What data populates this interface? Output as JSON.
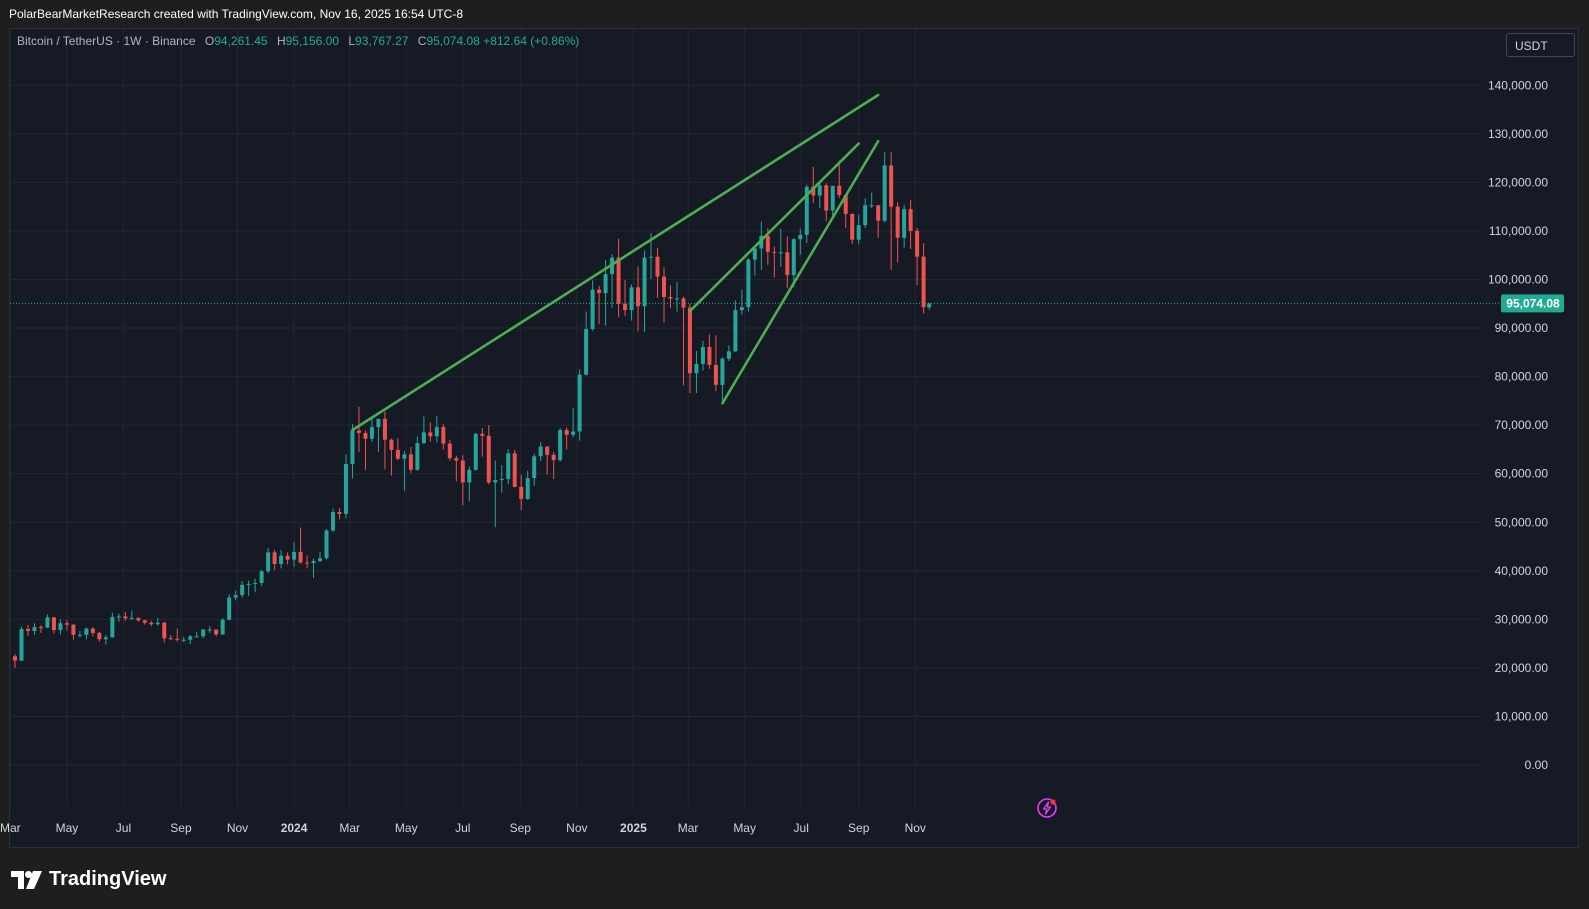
{
  "header": {
    "credit": "PolarBearMarketResearch created with TradingView.com, Nov 16, 2025 16:54 UTC-8"
  },
  "legend": {
    "symbol": "Bitcoin / TetherUS · 1W · Binance",
    "open_label": "O",
    "open": "94,261.45",
    "high_label": "H",
    "high": "95,156.00",
    "low_label": "L",
    "low": "93,767.27",
    "close_label": "C",
    "close": "95,074.08",
    "change": "+812.64 (+0.86%)"
  },
  "currency_button": {
    "label": "USDT"
  },
  "brand": {
    "name": "TradingView"
  },
  "icons": {
    "logo": "tradingview-logo-icon",
    "alert": "lightning-alert-icon"
  },
  "colors": {
    "background": "#161a25",
    "up": "#26a69a",
    "down": "#ef5350",
    "trendline": "#4caf50",
    "price_tag": "#22ab94"
  },
  "chart_data": {
    "type": "candlestick",
    "symbol": "BTCUSDT",
    "interval": "1W",
    "y_axis": {
      "ticks": [
        "140,000.00",
        "130,000.00",
        "120,000.00",
        "110,000.00",
        "100,000.00",
        "90,000.00",
        "80,000.00",
        "70,000.00",
        "60,000.00",
        "50,000.00",
        "40,000.00",
        "30,000.00",
        "20,000.00",
        "10,000.00",
        "0.00"
      ],
      "range": [
        -10000,
        153000
      ]
    },
    "x_axis": {
      "ticks": [
        "Mar",
        "May",
        "Jul",
        "Sep",
        "Nov",
        "2024",
        "Mar",
        "May",
        "Jul",
        "Sep",
        "Nov",
        "2025",
        "Mar",
        "May",
        "Jul",
        "Sep",
        "Nov"
      ],
      "bold": [
        "2024",
        "2025"
      ]
    },
    "last_price": {
      "value": 95074.08,
      "label": "95,074.08"
    },
    "trendlines": [
      {
        "from": {
          "week": "2024-03-04",
          "price": 69000
        },
        "to": {
          "week": "2025-09-22",
          "price": 138000
        }
      },
      {
        "from": {
          "week": "2025-03-03",
          "price": 93500
        },
        "to": {
          "week": "2025-09-01",
          "price": 128000
        }
      },
      {
        "from": {
          "week": "2025-04-07",
          "price": 74500
        },
        "to": {
          "week": "2025-09-22",
          "price": 128500
        }
      }
    ],
    "candles": [
      {
        "w": "2023-03-06",
        "o": 22400,
        "h": 22800,
        "l": 20000,
        "c": 21500
      },
      {
        "w": "2023-03-13",
        "o": 21500,
        "h": 28500,
        "l": 21400,
        "c": 28000
      },
      {
        "w": "2023-03-20",
        "o": 28000,
        "h": 28800,
        "l": 26600,
        "c": 27600
      },
      {
        "w": "2023-03-27",
        "o": 27600,
        "h": 29200,
        "l": 26800,
        "c": 28400
      },
      {
        "w": "2023-04-03",
        "o": 28400,
        "h": 28800,
        "l": 27200,
        "c": 28300
      },
      {
        "w": "2023-04-10",
        "o": 28300,
        "h": 31000,
        "l": 28200,
        "c": 30400
      },
      {
        "w": "2023-04-17",
        "o": 30400,
        "h": 30500,
        "l": 27100,
        "c": 27800
      },
      {
        "w": "2023-04-24",
        "o": 27800,
        "h": 30000,
        "l": 26900,
        "c": 29200
      },
      {
        "w": "2023-05-01",
        "o": 29200,
        "h": 29800,
        "l": 27700,
        "c": 28900
      },
      {
        "w": "2023-05-08",
        "o": 28900,
        "h": 29000,
        "l": 25800,
        "c": 26800
      },
      {
        "w": "2023-05-15",
        "o": 26800,
        "h": 27600,
        "l": 26300,
        "c": 26800
      },
      {
        "w": "2023-05-22",
        "o": 26800,
        "h": 28300,
        "l": 25900,
        "c": 28100
      },
      {
        "w": "2023-05-29",
        "o": 28100,
        "h": 28400,
        "l": 26500,
        "c": 27200
      },
      {
        "w": "2023-06-05",
        "o": 27200,
        "h": 27400,
        "l": 25400,
        "c": 25900
      },
      {
        "w": "2023-06-12",
        "o": 25900,
        "h": 26800,
        "l": 24800,
        "c": 26300
      },
      {
        "w": "2023-06-19",
        "o": 26300,
        "h": 31400,
        "l": 26200,
        "c": 30500
      },
      {
        "w": "2023-06-26",
        "o": 30500,
        "h": 31200,
        "l": 29500,
        "c": 30600
      },
      {
        "w": "2023-07-03",
        "o": 30600,
        "h": 31500,
        "l": 29700,
        "c": 30200
      },
      {
        "w": "2023-07-10",
        "o": 30200,
        "h": 31800,
        "l": 29900,
        "c": 30300
      },
      {
        "w": "2023-07-17",
        "o": 30300,
        "h": 30400,
        "l": 29500,
        "c": 29800
      },
      {
        "w": "2023-07-24",
        "o": 29800,
        "h": 29900,
        "l": 28900,
        "c": 29300
      },
      {
        "w": "2023-07-31",
        "o": 29300,
        "h": 29700,
        "l": 28600,
        "c": 29000
      },
      {
        "w": "2023-08-07",
        "o": 29000,
        "h": 30300,
        "l": 28700,
        "c": 29300
      },
      {
        "w": "2023-08-14",
        "o": 29300,
        "h": 29500,
        "l": 25200,
        "c": 26100
      },
      {
        "w": "2023-08-21",
        "o": 26100,
        "h": 26800,
        "l": 25800,
        "c": 26000
      },
      {
        "w": "2023-08-28",
        "o": 26000,
        "h": 28100,
        "l": 25400,
        "c": 25800
      },
      {
        "w": "2023-09-04",
        "o": 25800,
        "h": 26400,
        "l": 25300,
        "c": 25800
      },
      {
        "w": "2023-09-11",
        "o": 25800,
        "h": 26800,
        "l": 24900,
        "c": 26500
      },
      {
        "w": "2023-09-18",
        "o": 26500,
        "h": 27400,
        "l": 26300,
        "c": 26500
      },
      {
        "w": "2023-09-25",
        "o": 26500,
        "h": 28000,
        "l": 26100,
        "c": 27900
      },
      {
        "w": "2023-10-02",
        "o": 27900,
        "h": 28600,
        "l": 27200,
        "c": 27900
      },
      {
        "w": "2023-10-09",
        "o": 27900,
        "h": 27900,
        "l": 26500,
        "c": 26900
      },
      {
        "w": "2023-10-16",
        "o": 26900,
        "h": 30300,
        "l": 26800,
        "c": 29900
      },
      {
        "w": "2023-10-23",
        "o": 29900,
        "h": 35200,
        "l": 29800,
        "c": 34500
      },
      {
        "w": "2023-10-30",
        "o": 34500,
        "h": 35900,
        "l": 33900,
        "c": 35000
      },
      {
        "w": "2023-11-06",
        "o": 35000,
        "h": 37900,
        "l": 34500,
        "c": 37100
      },
      {
        "w": "2023-11-13",
        "o": 37100,
        "h": 38000,
        "l": 34800,
        "c": 37300
      },
      {
        "w": "2023-11-20",
        "o": 37300,
        "h": 38400,
        "l": 35600,
        "c": 37500
      },
      {
        "w": "2023-11-27",
        "o": 37500,
        "h": 40200,
        "l": 36900,
        "c": 39900
      },
      {
        "w": "2023-12-04",
        "o": 39900,
        "h": 44700,
        "l": 39500,
        "c": 43800
      },
      {
        "w": "2023-12-11",
        "o": 43800,
        "h": 44300,
        "l": 40200,
        "c": 41400
      },
      {
        "w": "2023-12-18",
        "o": 41400,
        "h": 44300,
        "l": 40500,
        "c": 43100
      },
      {
        "w": "2023-12-25",
        "o": 43100,
        "h": 43800,
        "l": 41300,
        "c": 42300
      },
      {
        "w": "2024-01-01",
        "o": 42300,
        "h": 45900,
        "l": 40800,
        "c": 43900
      },
      {
        "w": "2024-01-08",
        "o": 43900,
        "h": 48900,
        "l": 41500,
        "c": 41700
      },
      {
        "w": "2024-01-15",
        "o": 41700,
        "h": 43200,
        "l": 40500,
        "c": 41600
      },
      {
        "w": "2024-01-22",
        "o": 41600,
        "h": 42500,
        "l": 38500,
        "c": 42000
      },
      {
        "w": "2024-01-29",
        "o": 42000,
        "h": 43900,
        "l": 41800,
        "c": 42600
      },
      {
        "w": "2024-02-05",
        "o": 42600,
        "h": 48600,
        "l": 42300,
        "c": 48300
      },
      {
        "w": "2024-02-12",
        "o": 48300,
        "h": 52800,
        "l": 48000,
        "c": 52100
      },
      {
        "w": "2024-02-19",
        "o": 52100,
        "h": 52900,
        "l": 50600,
        "c": 51700
      },
      {
        "w": "2024-02-26",
        "o": 51700,
        "h": 64000,
        "l": 50800,
        "c": 62000
      },
      {
        "w": "2024-03-04",
        "o": 62000,
        "h": 70200,
        "l": 59000,
        "c": 68900
      },
      {
        "w": "2024-03-11",
        "o": 68900,
        "h": 73800,
        "l": 64500,
        "c": 68400
      },
      {
        "w": "2024-03-18",
        "o": 68400,
        "h": 68900,
        "l": 60800,
        "c": 67200
      },
      {
        "w": "2024-03-25",
        "o": 67200,
        "h": 71800,
        "l": 66500,
        "c": 69600
      },
      {
        "w": "2024-04-01",
        "o": 69600,
        "h": 71300,
        "l": 64500,
        "c": 71300
      },
      {
        "w": "2024-04-08",
        "o": 71300,
        "h": 72800,
        "l": 60900,
        "c": 67000
      },
      {
        "w": "2024-04-15",
        "o": 67000,
        "h": 67200,
        "l": 59600,
        "c": 64900
      },
      {
        "w": "2024-04-22",
        "o": 64900,
        "h": 67300,
        "l": 62800,
        "c": 63100
      },
      {
        "w": "2024-04-29",
        "o": 63100,
        "h": 64700,
        "l": 56500,
        "c": 64000
      },
      {
        "w": "2024-05-06",
        "o": 64000,
        "h": 65500,
        "l": 60200,
        "c": 60800
      },
      {
        "w": "2024-05-13",
        "o": 60800,
        "h": 67700,
        "l": 60600,
        "c": 66300
      },
      {
        "w": "2024-05-20",
        "o": 66300,
        "h": 71900,
        "l": 66100,
        "c": 68500
      },
      {
        "w": "2024-05-27",
        "o": 68500,
        "h": 70600,
        "l": 66600,
        "c": 67700
      },
      {
        "w": "2024-06-03",
        "o": 67700,
        "h": 71900,
        "l": 66400,
        "c": 69600
      },
      {
        "w": "2024-06-10",
        "o": 69600,
        "h": 70200,
        "l": 65000,
        "c": 66200
      },
      {
        "w": "2024-06-17",
        "o": 66200,
        "h": 67000,
        "l": 62700,
        "c": 63200
      },
      {
        "w": "2024-06-24",
        "o": 63200,
        "h": 63700,
        "l": 58400,
        "c": 62700
      },
      {
        "w": "2024-07-01",
        "o": 62700,
        "h": 63800,
        "l": 53500,
        "c": 58200
      },
      {
        "w": "2024-07-08",
        "o": 58200,
        "h": 61500,
        "l": 54300,
        "c": 60800
      },
      {
        "w": "2024-07-15",
        "o": 60800,
        "h": 68400,
        "l": 60600,
        "c": 68200
      },
      {
        "w": "2024-07-22",
        "o": 68200,
        "h": 69400,
        "l": 63500,
        "c": 67800
      },
      {
        "w": "2024-07-29",
        "o": 67800,
        "h": 70000,
        "l": 57800,
        "c": 58200
      },
      {
        "w": "2024-08-05",
        "o": 58200,
        "h": 62700,
        "l": 49000,
        "c": 58700
      },
      {
        "w": "2024-08-12",
        "o": 58700,
        "h": 61800,
        "l": 56100,
        "c": 58900
      },
      {
        "w": "2024-08-19",
        "o": 58900,
        "h": 65000,
        "l": 57800,
        "c": 64200
      },
      {
        "w": "2024-08-26",
        "o": 64200,
        "h": 64900,
        "l": 57200,
        "c": 57300
      },
      {
        "w": "2024-09-02",
        "o": 57300,
        "h": 59800,
        "l": 52500,
        "c": 54800
      },
      {
        "w": "2024-09-09",
        "o": 54800,
        "h": 60600,
        "l": 54600,
        "c": 59100
      },
      {
        "w": "2024-09-16",
        "o": 59100,
        "h": 64100,
        "l": 57500,
        "c": 63600
      },
      {
        "w": "2024-09-23",
        "o": 63600,
        "h": 66500,
        "l": 62600,
        "c": 65600
      },
      {
        "w": "2024-09-30",
        "o": 65600,
        "h": 65600,
        "l": 59800,
        "c": 63900
      },
      {
        "w": "2024-10-07",
        "o": 63900,
        "h": 64500,
        "l": 58900,
        "c": 62800
      },
      {
        "w": "2024-10-14",
        "o": 62800,
        "h": 69400,
        "l": 62500,
        "c": 69000
      },
      {
        "w": "2024-10-21",
        "o": 69000,
        "h": 69500,
        "l": 65000,
        "c": 68000
      },
      {
        "w": "2024-10-28",
        "o": 68000,
        "h": 73600,
        "l": 67500,
        "c": 68700
      },
      {
        "w": "2024-11-04",
        "o": 68700,
        "h": 81500,
        "l": 66800,
        "c": 80400
      },
      {
        "w": "2024-11-11",
        "o": 80400,
        "h": 93400,
        "l": 80200,
        "c": 89800
      },
      {
        "w": "2024-11-18",
        "o": 89800,
        "h": 99800,
        "l": 89400,
        "c": 97900
      },
      {
        "w": "2024-11-25",
        "o": 97900,
        "h": 98700,
        "l": 90800,
        "c": 97200
      },
      {
        "w": "2024-12-02",
        "o": 97200,
        "h": 104000,
        "l": 90500,
        "c": 101100
      },
      {
        "w": "2024-12-09",
        "o": 101100,
        "h": 105200,
        "l": 94200,
        "c": 104500
      },
      {
        "w": "2024-12-16",
        "o": 104500,
        "h": 108400,
        "l": 92200,
        "c": 95000
      },
      {
        "w": "2024-12-23",
        "o": 95000,
        "h": 99900,
        "l": 92500,
        "c": 93700
      },
      {
        "w": "2024-12-30",
        "o": 93700,
        "h": 99000,
        "l": 91500,
        "c": 98400
      },
      {
        "w": "2025-01-06",
        "o": 98400,
        "h": 102700,
        "l": 89300,
        "c": 94500
      },
      {
        "w": "2025-01-13",
        "o": 94500,
        "h": 106000,
        "l": 89200,
        "c": 104500
      },
      {
        "w": "2025-01-20",
        "o": 104500,
        "h": 109600,
        "l": 100100,
        "c": 104700
      },
      {
        "w": "2025-01-27",
        "o": 104700,
        "h": 106500,
        "l": 96200,
        "c": 100600
      },
      {
        "w": "2025-02-03",
        "o": 100600,
        "h": 102500,
        "l": 91200,
        "c": 96400
      },
      {
        "w": "2025-02-10",
        "o": 96400,
        "h": 98800,
        "l": 94100,
        "c": 96100
      },
      {
        "w": "2025-02-17",
        "o": 96100,
        "h": 99500,
        "l": 93400,
        "c": 96100
      },
      {
        "w": "2025-02-24",
        "o": 96100,
        "h": 96500,
        "l": 78200,
        "c": 94200
      },
      {
        "w": "2025-03-03",
        "o": 94200,
        "h": 95000,
        "l": 76600,
        "c": 80700
      },
      {
        "w": "2025-03-10",
        "o": 80700,
        "h": 85300,
        "l": 76600,
        "c": 82600
      },
      {
        "w": "2025-03-17",
        "o": 82600,
        "h": 87400,
        "l": 81200,
        "c": 86100
      },
      {
        "w": "2025-03-24",
        "o": 86100,
        "h": 88700,
        "l": 81600,
        "c": 82400
      },
      {
        "w": "2025-03-31",
        "o": 82400,
        "h": 88500,
        "l": 77000,
        "c": 78300
      },
      {
        "w": "2025-04-07",
        "o": 78300,
        "h": 84000,
        "l": 74500,
        "c": 83700
      },
      {
        "w": "2025-04-14",
        "o": 83700,
        "h": 86400,
        "l": 83200,
        "c": 85200
      },
      {
        "w": "2025-04-21",
        "o": 85200,
        "h": 95700,
        "l": 85100,
        "c": 93700
      },
      {
        "w": "2025-04-28",
        "o": 93700,
        "h": 97900,
        "l": 92800,
        "c": 94300
      },
      {
        "w": "2025-05-05",
        "o": 94300,
        "h": 104400,
        "l": 93400,
        "c": 104100
      },
      {
        "w": "2025-05-12",
        "o": 104100,
        "h": 105800,
        "l": 100800,
        "c": 106400
      },
      {
        "w": "2025-05-19",
        "o": 106400,
        "h": 111900,
        "l": 102000,
        "c": 109000
      },
      {
        "w": "2025-05-26",
        "o": 109000,
        "h": 110600,
        "l": 103000,
        "c": 105700
      },
      {
        "w": "2025-06-02",
        "o": 105700,
        "h": 106800,
        "l": 100400,
        "c": 105600
      },
      {
        "w": "2025-06-09",
        "o": 105600,
        "h": 110500,
        "l": 102600,
        "c": 105600
      },
      {
        "w": "2025-06-16",
        "o": 105600,
        "h": 108900,
        "l": 98200,
        "c": 100900
      },
      {
        "w": "2025-06-23",
        "o": 100900,
        "h": 108500,
        "l": 98400,
        "c": 108300
      },
      {
        "w": "2025-06-30",
        "o": 108300,
        "h": 110500,
        "l": 105100,
        "c": 109200
      },
      {
        "w": "2025-07-07",
        "o": 109200,
        "h": 119500,
        "l": 107500,
        "c": 119100
      },
      {
        "w": "2025-07-14",
        "o": 119100,
        "h": 123200,
        "l": 115700,
        "c": 117300
      },
      {
        "w": "2025-07-21",
        "o": 117300,
        "h": 120200,
        "l": 114700,
        "c": 119400
      },
      {
        "w": "2025-07-28",
        "o": 119400,
        "h": 119800,
        "l": 112000,
        "c": 114200
      },
      {
        "w": "2025-08-04",
        "o": 114200,
        "h": 119300,
        "l": 112600,
        "c": 119300
      },
      {
        "w": "2025-08-11",
        "o": 119300,
        "h": 124500,
        "l": 116800,
        "c": 117400
      },
      {
        "w": "2025-08-18",
        "o": 117400,
        "h": 117600,
        "l": 110600,
        "c": 113500
      },
      {
        "w": "2025-08-25",
        "o": 113500,
        "h": 113600,
        "l": 107300,
        "c": 108200
      },
      {
        "w": "2025-09-01",
        "o": 108200,
        "h": 113400,
        "l": 107300,
        "c": 111200
      },
      {
        "w": "2025-09-08",
        "o": 111200,
        "h": 116700,
        "l": 110600,
        "c": 115300
      },
      {
        "w": "2025-09-15",
        "o": 115300,
        "h": 117900,
        "l": 114700,
        "c": 115300
      },
      {
        "w": "2025-09-22",
        "o": 115300,
        "h": 115300,
        "l": 108600,
        "c": 112100
      },
      {
        "w": "2025-09-29",
        "o": 112100,
        "h": 126200,
        "l": 111700,
        "c": 123500
      },
      {
        "w": "2025-10-06",
        "o": 123500,
        "h": 126200,
        "l": 102000,
        "c": 115000
      },
      {
        "w": "2025-10-13",
        "o": 115000,
        "h": 115900,
        "l": 103500,
        "c": 108600
      },
      {
        "w": "2025-10-20",
        "o": 108600,
        "h": 115400,
        "l": 106600,
        "c": 114500
      },
      {
        "w": "2025-10-27",
        "o": 114500,
        "h": 116400,
        "l": 106300,
        "c": 110000
      },
      {
        "w": "2025-11-03",
        "o": 110000,
        "h": 110600,
        "l": 98900,
        "c": 104700
      },
      {
        "w": "2025-11-10",
        "o": 104700,
        "h": 107500,
        "l": 93000,
        "c": 94300
      },
      {
        "w": "2025-11-16",
        "o": 94261.45,
        "h": 95156,
        "l": 93767.27,
        "c": 95074.08
      }
    ]
  }
}
